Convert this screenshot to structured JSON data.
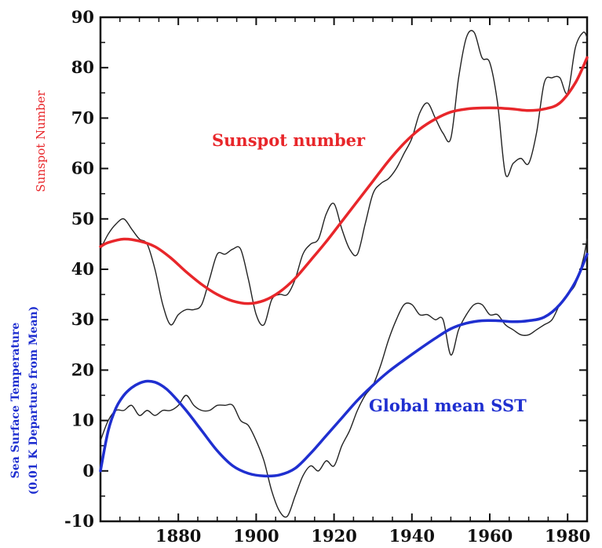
{
  "chart_data": {
    "type": "line",
    "title": "",
    "xlabel": "",
    "ylabel_left": "Sunspot Number",
    "ylabel_left_2": "Sea Surface Temperature",
    "ylabel_left_3": "(0.01 K Departure from Mean)",
    "xlim": [
      1860,
      1985
    ],
    "ylim": [
      -10,
      90
    ],
    "x_ticks": [
      1880,
      1900,
      1920,
      1940,
      1960,
      1980
    ],
    "y_ticks": [
      -10,
      0,
      10,
      20,
      30,
      40,
      50,
      60,
      70,
      80,
      90
    ],
    "grid": false,
    "annotations": [
      {
        "text": "Sunspot number",
        "color": "#e8262a"
      },
      {
        "text": "Global mean SST",
        "color": "#1f2fd0"
      }
    ],
    "series": [
      {
        "color": "#e8262a",
        "style": "smooth",
        "x": [
          1860,
          1862,
          1866,
          1870,
          1874,
          1878,
          1882,
          1886,
          1890,
          1894,
          1898,
          1902,
          1906,
          1910,
          1914,
          1918,
          1922,
          1926,
          1930,
          1934,
          1938,
          1942,
          1946,
          1950,
          1954,
          1958,
          1962,
          1966,
          1970,
          1974,
          1978,
          1982,
          1985
        ],
        "y": [
          44.5,
          45.3,
          46,
          45.6,
          44.5,
          42.3,
          39.5,
          37,
          35,
          33.7,
          33.2,
          33.8,
          35.5,
          38.2,
          41.8,
          45.5,
          49.5,
          53.5,
          57.5,
          61.5,
          65,
          67.8,
          69.8,
          71.2,
          71.8,
          72,
          72,
          71.8,
          71.5,
          71.8,
          73,
          77,
          82
        ]
      },
      {
        "color": "#222222",
        "style": "noisy",
        "x": [
          1860,
          1862,
          1864,
          1866,
          1868,
          1870,
          1872,
          1874,
          1876,
          1878,
          1880,
          1882,
          1884,
          1886,
          1888,
          1890,
          1892,
          1894,
          1896,
          1898,
          1900,
          1902,
          1904,
          1906,
          1908,
          1910,
          1912,
          1914,
          1916,
          1918,
          1920,
          1922,
          1924,
          1926,
          1928,
          1930,
          1932,
          1934,
          1936,
          1938,
          1940,
          1942,
          1944,
          1946,
          1948,
          1950,
          1952,
          1954,
          1956,
          1958,
          1960,
          1962,
          1964,
          1966,
          1968,
          1970,
          1972,
          1974,
          1976,
          1978,
          1980,
          1982,
          1984,
          1985
        ],
        "y": [
          44,
          47,
          49,
          50,
          48,
          46,
          45,
          40,
          33,
          29,
          31,
          32,
          32,
          33,
          38,
          43,
          43,
          44,
          44,
          38,
          31,
          29,
          34,
          35,
          35,
          38,
          43,
          45,
          46,
          51,
          53,
          48,
          44,
          43,
          49,
          55,
          57,
          58,
          60,
          63,
          66,
          71,
          73,
          70,
          67,
          66,
          78,
          86,
          87,
          82,
          81,
          73,
          59,
          61,
          62,
          61,
          67,
          77,
          78,
          78,
          75,
          84,
          87,
          86
        ]
      },
      {
        "color": "#1f2fd0",
        "style": "smooth",
        "x": [
          1860,
          1862,
          1864,
          1866,
          1868,
          1870,
          1872,
          1874,
          1876,
          1878,
          1882,
          1886,
          1890,
          1894,
          1898,
          1902,
          1906,
          1910,
          1914,
          1918,
          1922,
          1926,
          1930,
          1934,
          1938,
          1942,
          1946,
          1950,
          1954,
          1958,
          1962,
          1966,
          1970,
          1974,
          1978,
          1982,
          1985
        ],
        "y": [
          0,
          8,
          12.5,
          15,
          16.5,
          17.4,
          17.8,
          17.6,
          16.8,
          15.5,
          12,
          8,
          4,
          1,
          -0.5,
          -1,
          -0.8,
          0.5,
          3.5,
          7,
          10.5,
          14,
          17,
          19.7,
          22,
          24.2,
          26.3,
          28.2,
          29.3,
          29.8,
          29.8,
          29.6,
          29.8,
          30.5,
          33,
          37.5,
          43
        ]
      },
      {
        "color": "#222222",
        "style": "noisy",
        "x": [
          1860,
          1862,
          1864,
          1866,
          1868,
          1870,
          1872,
          1874,
          1876,
          1878,
          1880,
          1882,
          1884,
          1886,
          1888,
          1890,
          1892,
          1894,
          1896,
          1898,
          1900,
          1902,
          1904,
          1906,
          1908,
          1910,
          1912,
          1914,
          1916,
          1918,
          1920,
          1922,
          1924,
          1926,
          1928,
          1930,
          1932,
          1934,
          1936,
          1938,
          1940,
          1942,
          1944,
          1946,
          1948,
          1950,
          1952,
          1954,
          1956,
          1958,
          1960,
          1962,
          1964,
          1966,
          1968,
          1970,
          1972,
          1974,
          1976,
          1978,
          1980,
          1982,
          1984,
          1985
        ],
        "y": [
          6,
          10,
          12,
          12,
          13,
          11,
          12,
          11,
          12,
          12,
          13,
          15,
          13,
          12,
          12,
          13,
          13,
          13,
          10,
          9,
          6,
          2,
          -4,
          -8,
          -9,
          -5,
          -1,
          1,
          0,
          2,
          1,
          5,
          8,
          12,
          15,
          17,
          21,
          26,
          30,
          33,
          33,
          31,
          31,
          30,
          30,
          23,
          28,
          31,
          33,
          33,
          31,
          31,
          29,
          28,
          27,
          27,
          28,
          29,
          30,
          33,
          35,
          37,
          42,
          46
        ]
      }
    ]
  }
}
